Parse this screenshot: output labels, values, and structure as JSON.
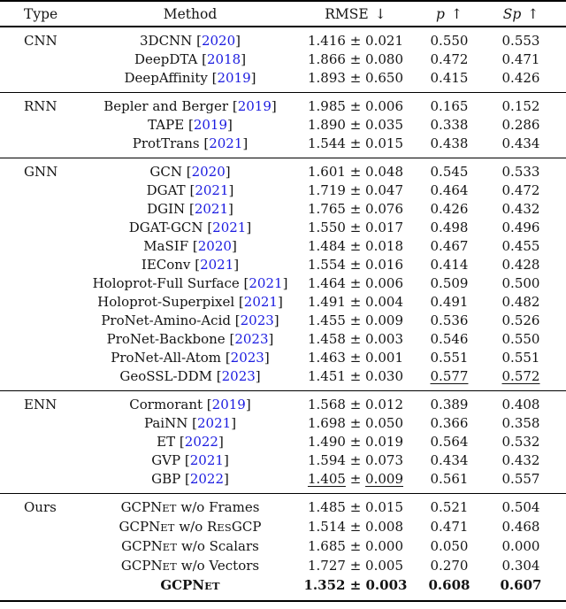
{
  "colors": {
    "citation": "#1b1be0",
    "text": "#141414",
    "rule": "#000000",
    "background": "#ffffff"
  },
  "header": {
    "type": "Type",
    "method": "Method",
    "rmse": "RMSE",
    "rmse_arrow": "↓",
    "p": "p",
    "p_arrow": "↑",
    "sp": "Sp",
    "sp_arrow": "↑"
  },
  "pm_sign": "±",
  "sections": [
    {
      "type": "CNN",
      "rows": [
        {
          "m": [
            {
              "t": "3DCNN"
            }
          ],
          "year": "2020",
          "rmse": "1.416",
          "pm": "0.021",
          "p": "0.550",
          "sp": "0.553"
        },
        {
          "m": [
            {
              "t": "DeepDTA"
            }
          ],
          "year": "2018",
          "rmse": "1.866",
          "pm": "0.080",
          "p": "0.472",
          "sp": "0.471"
        },
        {
          "m": [
            {
              "t": "DeepAffinity"
            }
          ],
          "year": "2019",
          "rmse": "1.893",
          "pm": "0.650",
          "p": "0.415",
          "sp": "0.426"
        }
      ]
    },
    {
      "type": "RNN",
      "rows": [
        {
          "m": [
            {
              "t": "Bepler and Berger"
            }
          ],
          "year": "2019",
          "rmse": "1.985",
          "pm": "0.006",
          "p": "0.165",
          "sp": "0.152"
        },
        {
          "m": [
            {
              "t": "TAPE"
            }
          ],
          "year": "2019",
          "rmse": "1.890",
          "pm": "0.035",
          "p": "0.338",
          "sp": "0.286"
        },
        {
          "m": [
            {
              "t": "ProtTrans"
            }
          ],
          "year": "2021",
          "rmse": "1.544",
          "pm": "0.015",
          "p": "0.438",
          "sp": "0.434"
        }
      ]
    },
    {
      "type": "GNN",
      "rows": [
        {
          "m": [
            {
              "t": "GCN"
            }
          ],
          "year": "2020",
          "rmse": "1.601",
          "pm": "0.048",
          "p": "0.545",
          "sp": "0.533"
        },
        {
          "m": [
            {
              "t": "DGAT"
            }
          ],
          "year": "2021",
          "rmse": "1.719",
          "pm": "0.047",
          "p": "0.464",
          "sp": "0.472"
        },
        {
          "m": [
            {
              "t": "DGIN"
            }
          ],
          "year": "2021",
          "rmse": "1.765",
          "pm": "0.076",
          "p": "0.426",
          "sp": "0.432"
        },
        {
          "m": [
            {
              "t": "DGAT-GCN"
            }
          ],
          "year": "2021",
          "rmse": "1.550",
          "pm": "0.017",
          "p": "0.498",
          "sp": "0.496"
        },
        {
          "m": [
            {
              "t": "MaSIF"
            }
          ],
          "year": "2020",
          "rmse": "1.484",
          "pm": "0.018",
          "p": "0.467",
          "sp": "0.455"
        },
        {
          "m": [
            {
              "t": "IEConv"
            }
          ],
          "year": "2021",
          "rmse": "1.554",
          "pm": "0.016",
          "p": "0.414",
          "sp": "0.428"
        },
        {
          "m": [
            {
              "t": "Holoprot-Full Surface"
            }
          ],
          "year": "2021",
          "rmse": "1.464",
          "pm": "0.006",
          "p": "0.509",
          "sp": "0.500"
        },
        {
          "m": [
            {
              "t": "Holoprot-Superpixel"
            }
          ],
          "year": "2021",
          "rmse": "1.491",
          "pm": "0.004",
          "p": "0.491",
          "sp": "0.482"
        },
        {
          "m": [
            {
              "t": "ProNet-Amino-Acid"
            }
          ],
          "year": "2023",
          "rmse": "1.455",
          "pm": "0.009",
          "p": "0.536",
          "sp": "0.526"
        },
        {
          "m": [
            {
              "t": "ProNet-Backbone"
            }
          ],
          "year": "2023",
          "rmse": "1.458",
          "pm": "0.003",
          "p": "0.546",
          "sp": "0.550"
        },
        {
          "m": [
            {
              "t": "ProNet-All-Atom"
            }
          ],
          "year": "2023",
          "rmse": "1.463",
          "pm": "0.001",
          "p": "0.551",
          "sp": "0.551"
        },
        {
          "m": [
            {
              "t": "GeoSSL-DDM"
            }
          ],
          "year": "2023",
          "rmse": "1.451",
          "pm": "0.030",
          "p": "0.577",
          "sp": "0.572",
          "ul_p": true,
          "ul_sp": true
        }
      ]
    },
    {
      "type": "ENN",
      "rows": [
        {
          "m": [
            {
              "t": "Cormorant"
            }
          ],
          "year": "2019",
          "rmse": "1.568",
          "pm": "0.012",
          "p": "0.389",
          "sp": "0.408"
        },
        {
          "m": [
            {
              "t": "PaiNN"
            }
          ],
          "year": "2021",
          "rmse": "1.698",
          "pm": "0.050",
          "p": "0.366",
          "sp": "0.358"
        },
        {
          "m": [
            {
              "t": "ET"
            }
          ],
          "year": "2022",
          "rmse": "1.490",
          "pm": "0.019",
          "p": "0.564",
          "sp": "0.532"
        },
        {
          "m": [
            {
              "t": "GVP"
            }
          ],
          "year": "2021",
          "rmse": "1.594",
          "pm": "0.073",
          "p": "0.434",
          "sp": "0.432"
        },
        {
          "m": [
            {
              "t": "GBP"
            }
          ],
          "year": "2022",
          "rmse": "1.405",
          "pm": "0.009",
          "p": "0.561",
          "sp": "0.557",
          "ul_rmse": true
        }
      ]
    },
    {
      "type": "Ours",
      "rows": [
        {
          "m": [
            {
              "t": "GCPN"
            },
            {
              "t": "et",
              "sc": true
            },
            {
              "t": " w/o Frames"
            }
          ],
          "year": null,
          "rmse": "1.485",
          "pm": "0.015",
          "p": "0.521",
          "sp": "0.504"
        },
        {
          "m": [
            {
              "t": "GCPN"
            },
            {
              "t": "et",
              "sc": true
            },
            {
              "t": " w/o R"
            },
            {
              "t": "es",
              "sc": true
            },
            {
              "t": "GCP"
            }
          ],
          "year": null,
          "rmse": "1.514",
          "pm": "0.008",
          "p": "0.471",
          "sp": "0.468"
        },
        {
          "m": [
            {
              "t": "GCPN"
            },
            {
              "t": "et",
              "sc": true
            },
            {
              "t": " w/o Scalars"
            }
          ],
          "year": null,
          "rmse": "1.685",
          "pm": "0.000",
          "p": "0.050",
          "sp": "0.000"
        },
        {
          "m": [
            {
              "t": "GCPN"
            },
            {
              "t": "et",
              "sc": true
            },
            {
              "t": " w/o Vectors"
            }
          ],
          "year": null,
          "rmse": "1.727",
          "pm": "0.005",
          "p": "0.270",
          "sp": "0.304"
        },
        {
          "m": [
            {
              "t": "GCPN"
            },
            {
              "t": "et",
              "sc": true
            }
          ],
          "year": null,
          "rmse": "1.352",
          "pm": "0.003",
          "p": "0.608",
          "sp": "0.607",
          "bold": true
        }
      ]
    }
  ]
}
